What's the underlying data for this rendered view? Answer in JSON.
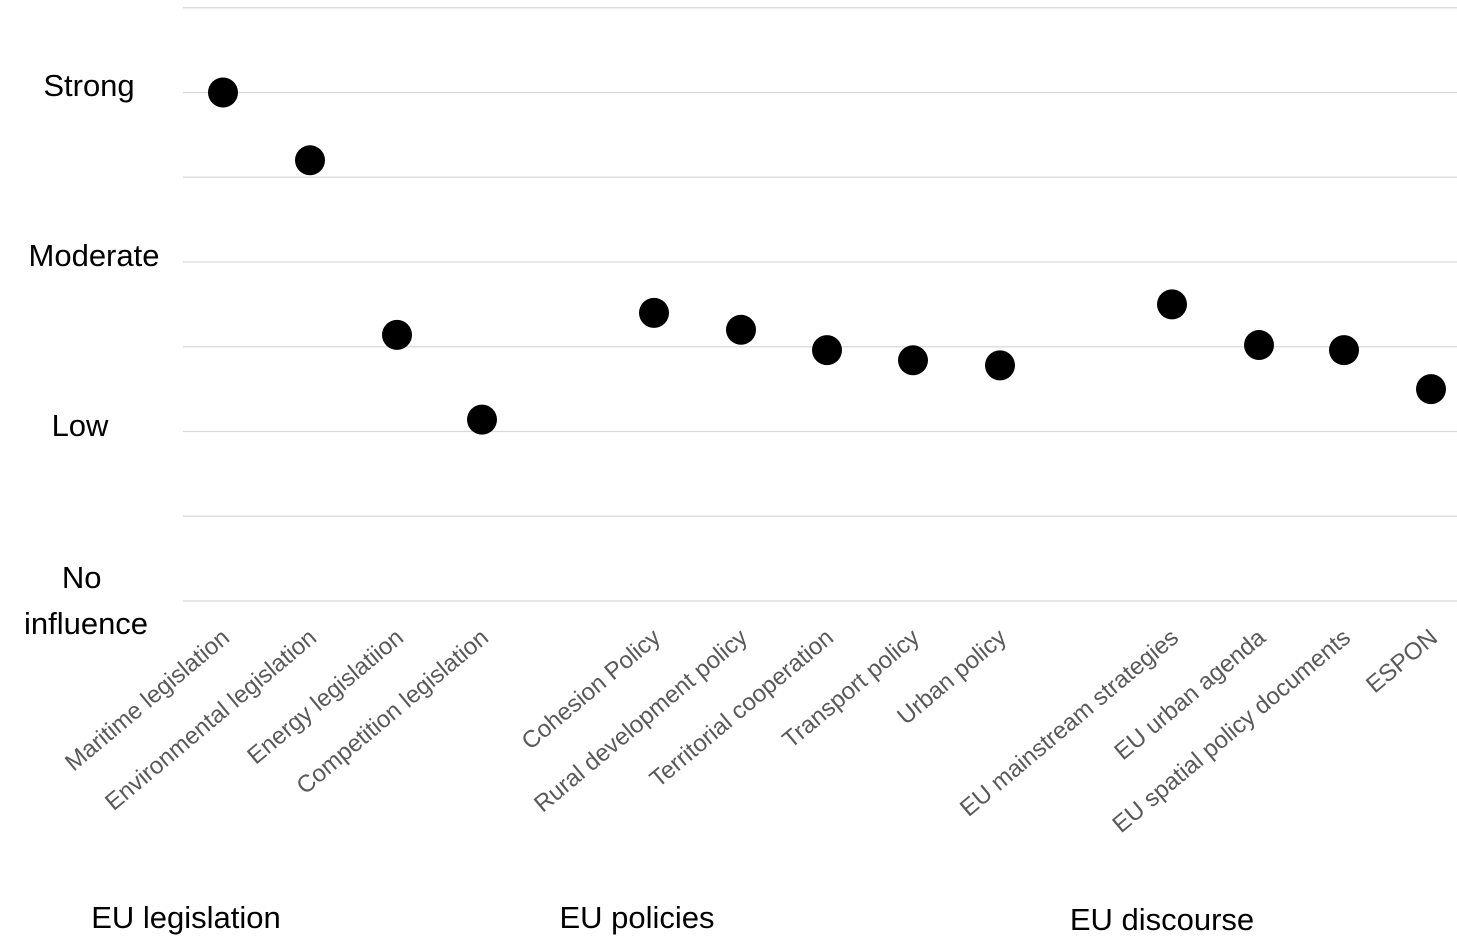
{
  "chart_data": {
    "type": "scatter",
    "y_levels": [
      {
        "value": 0,
        "label": "No influence"
      },
      {
        "value": 1,
        "label": "Low"
      },
      {
        "value": 2,
        "label": "Moderate"
      },
      {
        "value": 3,
        "label": "Strong"
      }
    ],
    "ylim": [
      0,
      3.5
    ],
    "grid": true,
    "legend": "none",
    "categories": [
      "Maritime legislation",
      "Environmental legislation",
      "Energy legislatiion",
      "Competition legislation",
      "Cohesion Policy",
      "Rural development policy",
      "Territorial cooperation",
      "Transport policy",
      "Urban policy",
      "EU mainstream strategies",
      "EU urban agenda",
      "EU spatial policy documents",
      "ESPON"
    ],
    "values": [
      3.0,
      2.6,
      1.57,
      1.07,
      1.7,
      1.6,
      1.48,
      1.42,
      1.39,
      1.75,
      1.51,
      1.48,
      1.25
    ],
    "groups": [
      {
        "label": "EU legislation",
        "members": [
          0,
          1,
          2,
          3
        ]
      },
      {
        "label": "EU policies",
        "members": [
          4,
          5,
          6,
          7,
          8
        ]
      },
      {
        "label": "EU discourse",
        "members": [
          9,
          10,
          11,
          12
        ]
      }
    ],
    "colors": {
      "point": "#000000",
      "grid": "#d9d9d9",
      "tick_label": "#595959"
    }
  }
}
